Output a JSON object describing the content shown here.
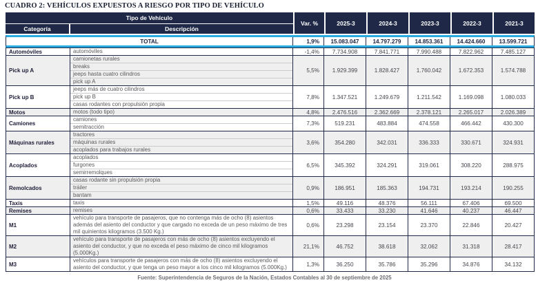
{
  "title": "CUADRO 2: VEHÍCULOS EXPUESTOS A RIESGO POR TIPO DE VEHÍCULO",
  "footer": "Fuente: Superintendencia de Seguros de la Nación, Estados Contables al 30 de septiembre de 2025",
  "colors": {
    "header_navy": "#1f2947",
    "accent_cyan": "#29abe2",
    "shaded_row": "#efefef"
  },
  "table": {
    "header": {
      "tipo": "Tipo de Vehículo",
      "categoria": "Categoría",
      "descripcion": "Descripción",
      "var": "Var. %",
      "years": [
        "2025-3",
        "2024-3",
        "2023-3",
        "2022-3",
        "2021-3"
      ]
    },
    "total": {
      "label": "TOTAL",
      "var": "1,9%",
      "values": [
        "15.083.047",
        "14.797.279",
        "14.853.361",
        "14.424.660",
        "13.599.721"
      ]
    },
    "rows": [
      {
        "category": "Automóviles",
        "descriptions": [
          "automóviles"
        ],
        "var": "-1,4%",
        "values": [
          "7.734.908",
          "7.841.771",
          "7.990.488",
          "7.822.962",
          "7.485.127"
        ],
        "shaded": false
      },
      {
        "category": "Pick up A",
        "descriptions": [
          "camionetas rurales",
          "breaks",
          "jeeps hasta cuatro cilindros",
          "pick up A"
        ],
        "var": "5,5%",
        "values": [
          "1.929.399",
          "1.828.427",
          "1.760.042",
          "1.672.353",
          "1.574.788"
        ],
        "shaded": true
      },
      {
        "category": "Pick up B",
        "descriptions": [
          "jeeps más de cuatro cilindros",
          "pick up B",
          "casas rodantes con propulsión propia"
        ],
        "var": "7,8%",
        "values": [
          "1.347.521",
          "1.249.679",
          "1.211.542",
          "1.169.098",
          "1.080.033"
        ],
        "shaded": false
      },
      {
        "category": "Motos",
        "descriptions": [
          "motos (todo tipo)"
        ],
        "var": "4,8%",
        "values": [
          "2.476.516",
          "2.362.669",
          "2.378.121",
          "2.265.017",
          "2.026.389"
        ],
        "shaded": true
      },
      {
        "category": "Camiones",
        "descriptions": [
          "camiones",
          "semitracción"
        ],
        "var": "7,3%",
        "values": [
          "519.231",
          "483.884",
          "474.558",
          "466.442",
          "430.300"
        ],
        "shaded": false
      },
      {
        "category": "Máquinas rurales",
        "descriptions": [
          "tractores",
          "máquinas rurales",
          "acoplados para trabajos rurales"
        ],
        "var": "3,6%",
        "values": [
          "354.280",
          "342.031",
          "336.333",
          "330.671",
          "324.931"
        ],
        "shaded": true
      },
      {
        "category": "Acoplados",
        "descriptions": [
          "acoplados",
          "furgones",
          "semirremolques"
        ],
        "var": "6,5%",
        "values": [
          "345.392",
          "324.291",
          "319.061",
          "308.220",
          "288.975"
        ],
        "shaded": false
      },
      {
        "category": "Remolcados",
        "descriptions": [
          "casas rodante sin propulsión propia",
          "tráiler",
          "bantam"
        ],
        "var": "0,9%",
        "values": [
          "186.951",
          "185.363",
          "194.731",
          "193.214",
          "190.255"
        ],
        "shaded": true
      },
      {
        "category": "Taxis",
        "descriptions": [
          "taxis"
        ],
        "var": "1,5%",
        "values": [
          "49.116",
          "48.376",
          "56.111",
          "67.406",
          "69.500"
        ],
        "shaded": false
      },
      {
        "category": "Remises",
        "descriptions": [
          "remises"
        ],
        "var": "0,6%",
        "values": [
          "33.433",
          "33.230",
          "41.646",
          "40.237",
          "46.447"
        ],
        "shaded": true
      },
      {
        "category": "M1",
        "descriptions": [
          "vehículo para transporte de pasajeros, que no contenga más de ocho (8) asientos además del asiento del conductor y que cargado no exceda de un peso máximo de tres mil quinientos kilogramos (3.500 Kg.)"
        ],
        "var": "0,6%",
        "values": [
          "23.298",
          "23.154",
          "23.370",
          "22.846",
          "20.427"
        ],
        "shaded": false
      },
      {
        "category": "M2",
        "descriptions": [
          "vehículo para transporte de pasajeros con más de ocho (8) asientos excluyendo el asiento del conductor, y que no exceda el peso máximo de cinco mil kilogramos (5.000Kg.)"
        ],
        "var": "21,1%",
        "values": [
          "46.752",
          "38.618",
          "32.062",
          "31.318",
          "28.417"
        ],
        "shaded": true
      },
      {
        "category": "M3",
        "descriptions": [
          "vehículos para transporte de pasajeros con más de ocho (8) asientos excluyendo el asiento del conductor, y que tenga un peso mayor a los cinco mil kilogramos (5.000Kg.)"
        ],
        "var": "1,3%",
        "values": [
          "36.250",
          "35.786",
          "35.296",
          "34.876",
          "34.132"
        ],
        "shaded": false
      }
    ]
  }
}
